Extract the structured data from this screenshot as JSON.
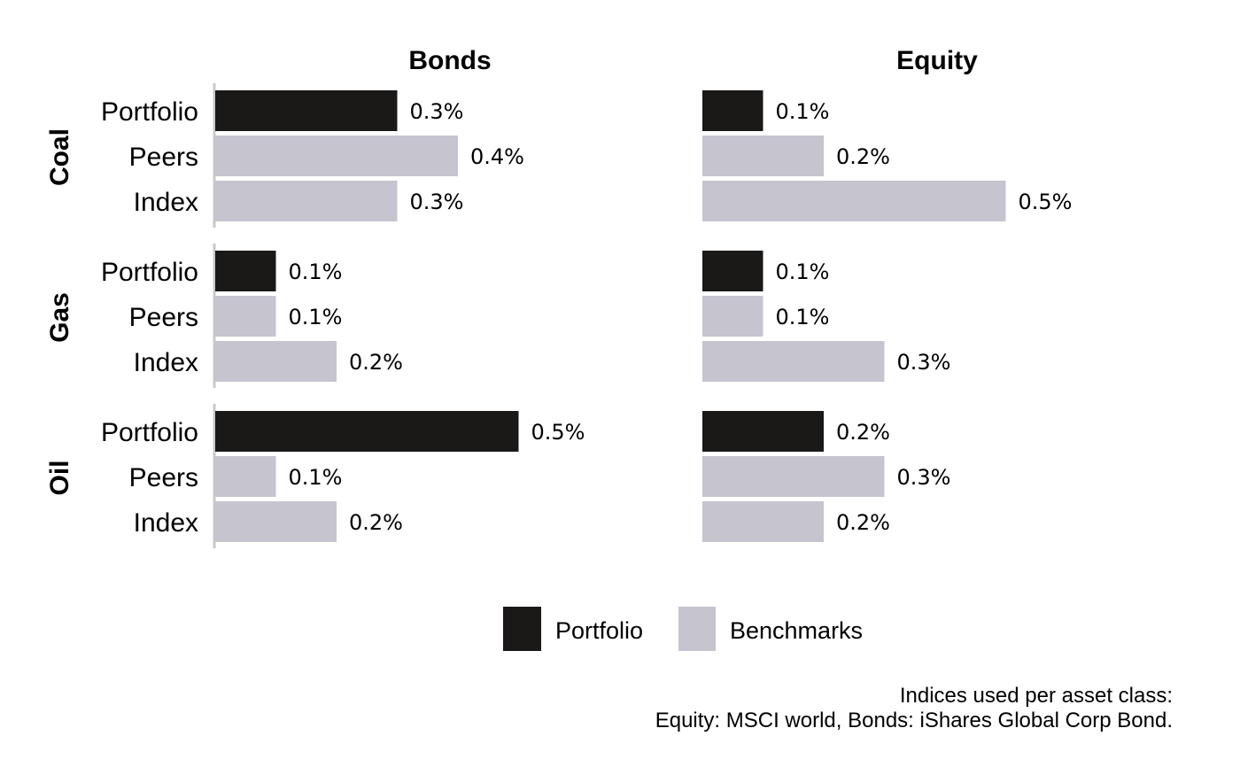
{
  "chart_data": {
    "type": "bar",
    "orientation": "horizontal",
    "columns": [
      "Bonds",
      "Equity"
    ],
    "rows": [
      "Coal",
      "Gas",
      "Oil"
    ],
    "categories": [
      "Portfolio",
      "Peers",
      "Index"
    ],
    "values": {
      "Bonds": {
        "Coal": [
          0.3,
          0.4,
          0.3
        ],
        "Gas": [
          0.1,
          0.1,
          0.2
        ],
        "Oil": [
          0.5,
          0.1,
          0.2
        ]
      },
      "Equity": {
        "Coal": [
          0.1,
          0.2,
          0.5
        ],
        "Gas": [
          0.1,
          0.1,
          0.3
        ],
        "Oil": [
          0.2,
          0.3,
          0.2
        ]
      }
    },
    "value_labels": {
      "Bonds": {
        "Coal": [
          "0.3%",
          "0.4%",
          "0.3%"
        ],
        "Gas": [
          "0.1%",
          "0.1%",
          "0.2%"
        ],
        "Oil": [
          "0.5%",
          "0.1%",
          "0.2%"
        ]
      },
      "Equity": {
        "Coal": [
          "0.1%",
          "0.2%",
          "0.5%"
        ],
        "Gas": [
          "0.1%",
          "0.1%",
          "0.3%"
        ],
        "Oil": [
          "0.2%",
          "0.3%",
          "0.2%"
        ]
      }
    },
    "xlim": [
      0,
      0.5
    ],
    "grid": false,
    "legend": {
      "position": "bottom",
      "items": [
        {
          "label": "Portfolio",
          "color": "#1a1918"
        },
        {
          "label": "Benchmarks",
          "color": "#c5c4cf"
        }
      ]
    },
    "caption": [
      "Indices used per asset class:",
      "Equity: MSCI world, Bonds: iShares Global Corp Bond."
    ]
  },
  "colors": {
    "portfolio": "#1a1918",
    "benchmark": "#c5c4cf",
    "axis": "#c8c8c8"
  }
}
